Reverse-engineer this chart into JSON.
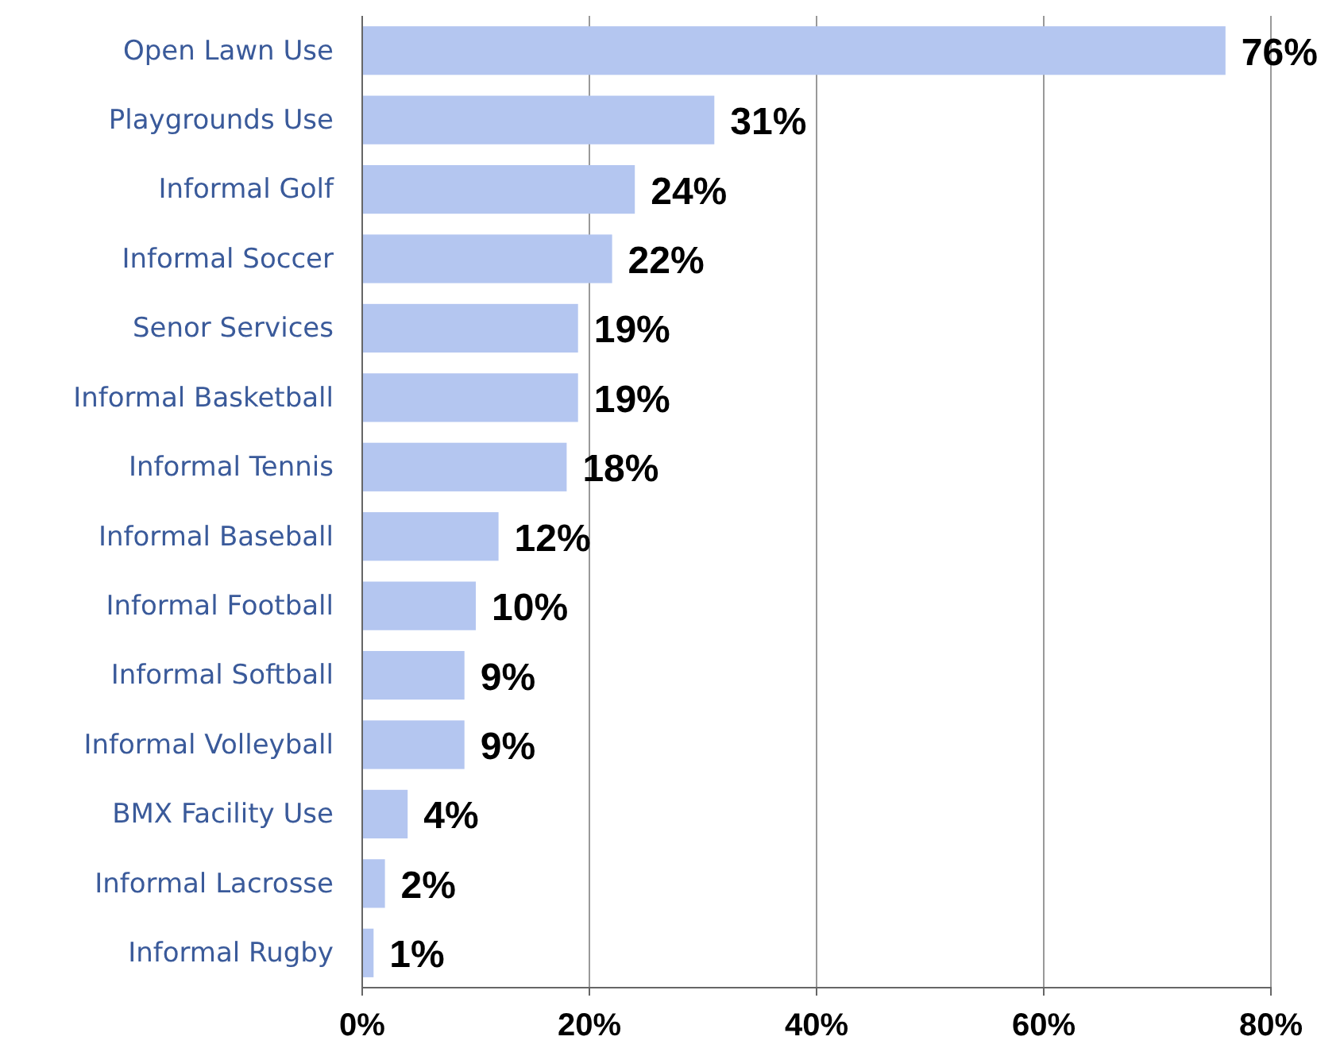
{
  "chart_data": {
    "type": "bar",
    "orientation": "horizontal",
    "categories": [
      "Open Lawn Use",
      "Playgrounds Use",
      "Informal Golf",
      "Informal Soccer",
      "Senor Services",
      "Informal Basketball",
      "Informal Tennis",
      "Informal Baseball",
      "Informal Football",
      "Informal Softball",
      "Informal Volleyball",
      "BMX Facility Use",
      "Informal Lacrosse",
      "Informal Rugby"
    ],
    "values": [
      76,
      31,
      24,
      22,
      19,
      19,
      18,
      12,
      10,
      9,
      9,
      4,
      2,
      1
    ],
    "value_labels": [
      "76%",
      "31%",
      "24%",
      "22%",
      "19%",
      "19%",
      "18%",
      "12%",
      "10%",
      "9%",
      "9%",
      "4%",
      "2%",
      "1%"
    ],
    "color": "#b4c6f0",
    "xlim": [
      0,
      80
    ],
    "xticks": [
      {
        "value": 0,
        "label": "0%"
      },
      {
        "value": 20,
        "label": "20%"
      },
      {
        "value": 40,
        "label": "40%"
      },
      {
        "value": 60,
        "label": "60%"
      },
      {
        "value": 80,
        "label": "80%"
      }
    ],
    "grid": "x"
  }
}
